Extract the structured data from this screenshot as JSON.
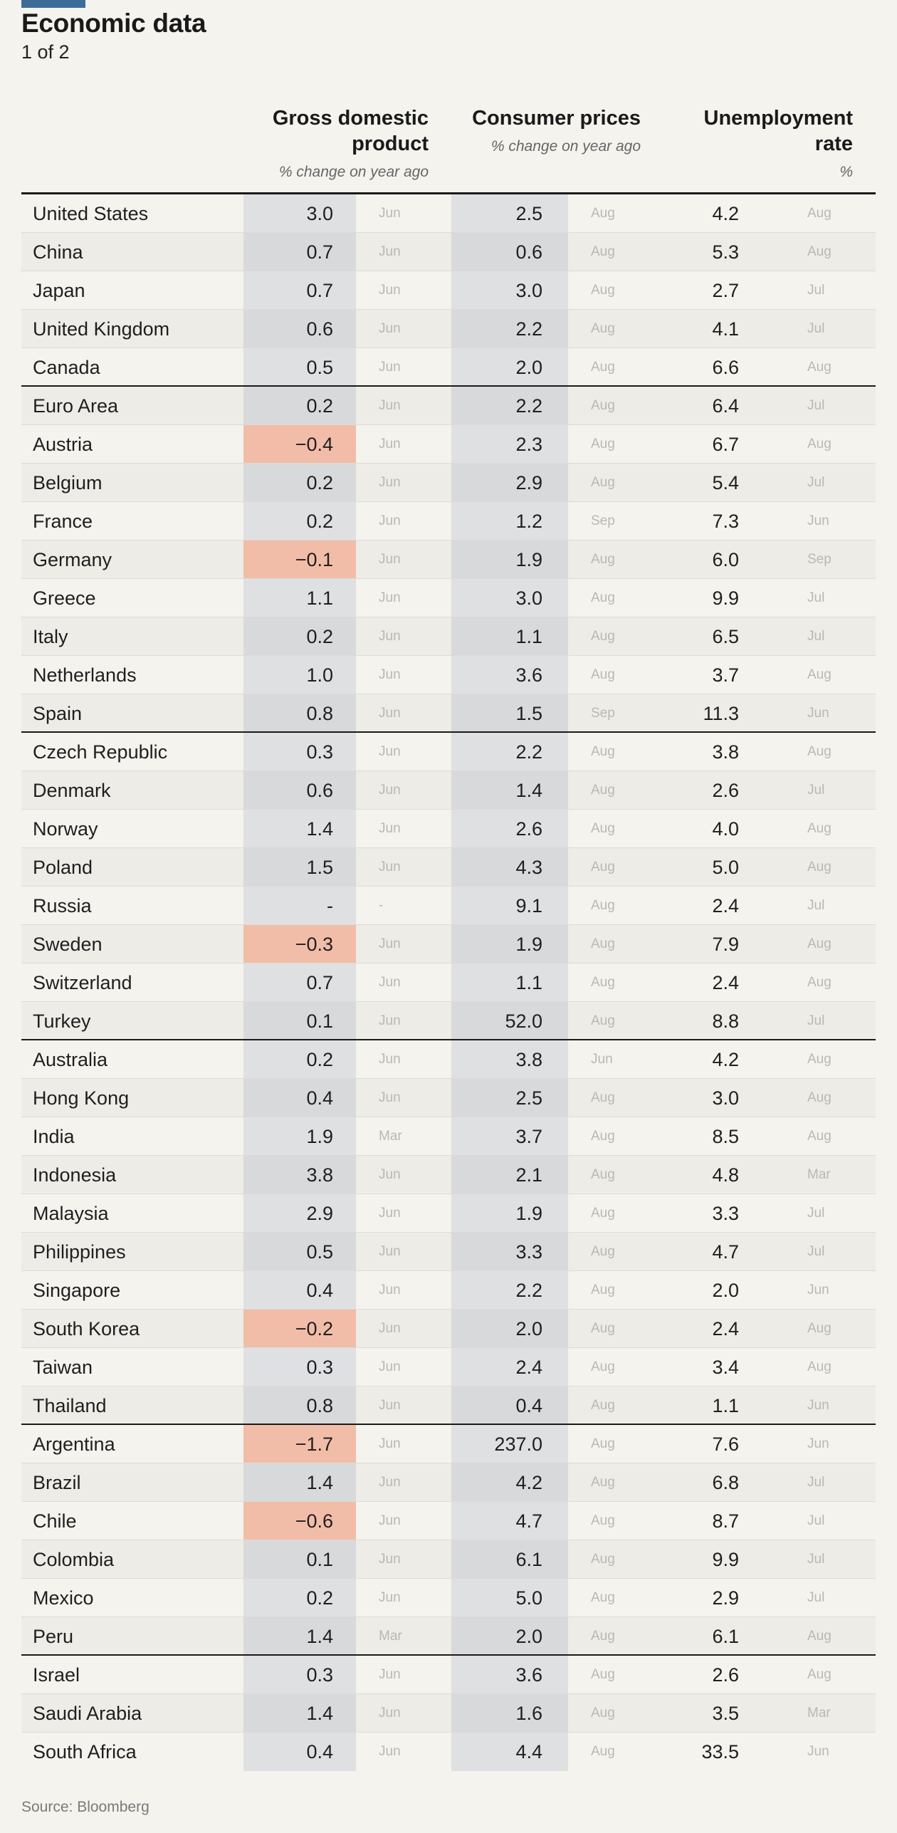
{
  "title": "Economic data",
  "subtitle": "1 of 2",
  "source": "Source: Bloomberg",
  "colors": {
    "brand": "#3e6c99",
    "negative_highlight": "#f2bda8",
    "column_shade": "#dfe0e1"
  },
  "columns": [
    {
      "label": "Gross domestic product",
      "unit": "% change on year ago"
    },
    {
      "label": "Consumer prices",
      "unit": "% change on year ago"
    },
    {
      "label": "Unemployment rate",
      "unit": "%"
    }
  ],
  "chart_data": {
    "type": "table",
    "title": "Economic data",
    "subtitle": "1 of 2",
    "columns": [
      "Gross domestic product",
      "Consumer prices",
      "Unemployment rate"
    ],
    "groups_end_after": [
      "Canada",
      "Spain",
      "Turkey",
      "Thailand",
      "Peru"
    ],
    "rows": [
      {
        "country": "United States",
        "gdp": "3.0",
        "gdp_month": "Jun",
        "cpi": "2.5",
        "cpi_month": "Aug",
        "unemp": "4.2",
        "unemp_month": "Aug"
      },
      {
        "country": "China",
        "gdp": "0.7",
        "gdp_month": "Jun",
        "cpi": "0.6",
        "cpi_month": "Aug",
        "unemp": "5.3",
        "unemp_month": "Aug"
      },
      {
        "country": "Japan",
        "gdp": "0.7",
        "gdp_month": "Jun",
        "cpi": "3.0",
        "cpi_month": "Aug",
        "unemp": "2.7",
        "unemp_month": "Jul"
      },
      {
        "country": "United Kingdom",
        "gdp": "0.6",
        "gdp_month": "Jun",
        "cpi": "2.2",
        "cpi_month": "Aug",
        "unemp": "4.1",
        "unemp_month": "Jul"
      },
      {
        "country": "Canada",
        "gdp": "0.5",
        "gdp_month": "Jun",
        "cpi": "2.0",
        "cpi_month": "Aug",
        "unemp": "6.6",
        "unemp_month": "Aug"
      },
      {
        "country": "Euro Area",
        "gdp": "0.2",
        "gdp_month": "Jun",
        "cpi": "2.2",
        "cpi_month": "Aug",
        "unemp": "6.4",
        "unemp_month": "Jul"
      },
      {
        "country": "Austria",
        "gdp": "−0.4",
        "gdp_month": "Jun",
        "cpi": "2.3",
        "cpi_month": "Aug",
        "unemp": "6.7",
        "unemp_month": "Aug"
      },
      {
        "country": "Belgium",
        "gdp": "0.2",
        "gdp_month": "Jun",
        "cpi": "2.9",
        "cpi_month": "Aug",
        "unemp": "5.4",
        "unemp_month": "Jul"
      },
      {
        "country": "France",
        "gdp": "0.2",
        "gdp_month": "Jun",
        "cpi": "1.2",
        "cpi_month": "Sep",
        "unemp": "7.3",
        "unemp_month": "Jun"
      },
      {
        "country": "Germany",
        "gdp": "−0.1",
        "gdp_month": "Jun",
        "cpi": "1.9",
        "cpi_month": "Aug",
        "unemp": "6.0",
        "unemp_month": "Sep"
      },
      {
        "country": "Greece",
        "gdp": "1.1",
        "gdp_month": "Jun",
        "cpi": "3.0",
        "cpi_month": "Aug",
        "unemp": "9.9",
        "unemp_month": "Jul"
      },
      {
        "country": "Italy",
        "gdp": "0.2",
        "gdp_month": "Jun",
        "cpi": "1.1",
        "cpi_month": "Aug",
        "unemp": "6.5",
        "unemp_month": "Jul"
      },
      {
        "country": "Netherlands",
        "gdp": "1.0",
        "gdp_month": "Jun",
        "cpi": "3.6",
        "cpi_month": "Aug",
        "unemp": "3.7",
        "unemp_month": "Aug"
      },
      {
        "country": "Spain",
        "gdp": "0.8",
        "gdp_month": "Jun",
        "cpi": "1.5",
        "cpi_month": "Sep",
        "unemp": "11.3",
        "unemp_month": "Jun"
      },
      {
        "country": "Czech Republic",
        "gdp": "0.3",
        "gdp_month": "Jun",
        "cpi": "2.2",
        "cpi_month": "Aug",
        "unemp": "3.8",
        "unemp_month": "Aug"
      },
      {
        "country": "Denmark",
        "gdp": "0.6",
        "gdp_month": "Jun",
        "cpi": "1.4",
        "cpi_month": "Aug",
        "unemp": "2.6",
        "unemp_month": "Jul"
      },
      {
        "country": "Norway",
        "gdp": "1.4",
        "gdp_month": "Jun",
        "cpi": "2.6",
        "cpi_month": "Aug",
        "unemp": "4.0",
        "unemp_month": "Aug"
      },
      {
        "country": "Poland",
        "gdp": "1.5",
        "gdp_month": "Jun",
        "cpi": "4.3",
        "cpi_month": "Aug",
        "unemp": "5.0",
        "unemp_month": "Aug"
      },
      {
        "country": "Russia",
        "gdp": "-",
        "gdp_month": "-",
        "cpi": "9.1",
        "cpi_month": "Aug",
        "unemp": "2.4",
        "unemp_month": "Jul"
      },
      {
        "country": "Sweden",
        "gdp": "−0.3",
        "gdp_month": "Jun",
        "cpi": "1.9",
        "cpi_month": "Aug",
        "unemp": "7.9",
        "unemp_month": "Aug"
      },
      {
        "country": "Switzerland",
        "gdp": "0.7",
        "gdp_month": "Jun",
        "cpi": "1.1",
        "cpi_month": "Aug",
        "unemp": "2.4",
        "unemp_month": "Aug"
      },
      {
        "country": "Turkey",
        "gdp": "0.1",
        "gdp_month": "Jun",
        "cpi": "52.0",
        "cpi_month": "Aug",
        "unemp": "8.8",
        "unemp_month": "Jul"
      },
      {
        "country": "Australia",
        "gdp": "0.2",
        "gdp_month": "Jun",
        "cpi": "3.8",
        "cpi_month": "Jun",
        "unemp": "4.2",
        "unemp_month": "Aug"
      },
      {
        "country": "Hong Kong",
        "gdp": "0.4",
        "gdp_month": "Jun",
        "cpi": "2.5",
        "cpi_month": "Aug",
        "unemp": "3.0",
        "unemp_month": "Aug"
      },
      {
        "country": "India",
        "gdp": "1.9",
        "gdp_month": "Mar",
        "cpi": "3.7",
        "cpi_month": "Aug",
        "unemp": "8.5",
        "unemp_month": "Aug"
      },
      {
        "country": "Indonesia",
        "gdp": "3.8",
        "gdp_month": "Jun",
        "cpi": "2.1",
        "cpi_month": "Aug",
        "unemp": "4.8",
        "unemp_month": "Mar"
      },
      {
        "country": "Malaysia",
        "gdp": "2.9",
        "gdp_month": "Jun",
        "cpi": "1.9",
        "cpi_month": "Aug",
        "unemp": "3.3",
        "unemp_month": "Jul"
      },
      {
        "country": "Philippines",
        "gdp": "0.5",
        "gdp_month": "Jun",
        "cpi": "3.3",
        "cpi_month": "Aug",
        "unemp": "4.7",
        "unemp_month": "Jul"
      },
      {
        "country": "Singapore",
        "gdp": "0.4",
        "gdp_month": "Jun",
        "cpi": "2.2",
        "cpi_month": "Aug",
        "unemp": "2.0",
        "unemp_month": "Jun"
      },
      {
        "country": "South Korea",
        "gdp": "−0.2",
        "gdp_month": "Jun",
        "cpi": "2.0",
        "cpi_month": "Aug",
        "unemp": "2.4",
        "unemp_month": "Aug"
      },
      {
        "country": "Taiwan",
        "gdp": "0.3",
        "gdp_month": "Jun",
        "cpi": "2.4",
        "cpi_month": "Aug",
        "unemp": "3.4",
        "unemp_month": "Aug"
      },
      {
        "country": "Thailand",
        "gdp": "0.8",
        "gdp_month": "Jun",
        "cpi": "0.4",
        "cpi_month": "Aug",
        "unemp": "1.1",
        "unemp_month": "Jun"
      },
      {
        "country": "Argentina",
        "gdp": "−1.7",
        "gdp_month": "Jun",
        "cpi": "237.0",
        "cpi_month": "Aug",
        "unemp": "7.6",
        "unemp_month": "Jun"
      },
      {
        "country": "Brazil",
        "gdp": "1.4",
        "gdp_month": "Jun",
        "cpi": "4.2",
        "cpi_month": "Aug",
        "unemp": "6.8",
        "unemp_month": "Jul"
      },
      {
        "country": "Chile",
        "gdp": "−0.6",
        "gdp_month": "Jun",
        "cpi": "4.7",
        "cpi_month": "Aug",
        "unemp": "8.7",
        "unemp_month": "Jul"
      },
      {
        "country": "Colombia",
        "gdp": "0.1",
        "gdp_month": "Jun",
        "cpi": "6.1",
        "cpi_month": "Aug",
        "unemp": "9.9",
        "unemp_month": "Jul"
      },
      {
        "country": "Mexico",
        "gdp": "0.2",
        "gdp_month": "Jun",
        "cpi": "5.0",
        "cpi_month": "Aug",
        "unemp": "2.9",
        "unemp_month": "Jul"
      },
      {
        "country": "Peru",
        "gdp": "1.4",
        "gdp_month": "Mar",
        "cpi": "2.0",
        "cpi_month": "Aug",
        "unemp": "6.1",
        "unemp_month": "Aug"
      },
      {
        "country": "Israel",
        "gdp": "0.3",
        "gdp_month": "Jun",
        "cpi": "3.6",
        "cpi_month": "Aug",
        "unemp": "2.6",
        "unemp_month": "Aug"
      },
      {
        "country": "Saudi Arabia",
        "gdp": "1.4",
        "gdp_month": "Jun",
        "cpi": "1.6",
        "cpi_month": "Aug",
        "unemp": "3.5",
        "unemp_month": "Mar"
      },
      {
        "country": "South Africa",
        "gdp": "0.4",
        "gdp_month": "Jun",
        "cpi": "4.4",
        "cpi_month": "Aug",
        "unemp": "33.5",
        "unemp_month": "Jun"
      }
    ]
  }
}
